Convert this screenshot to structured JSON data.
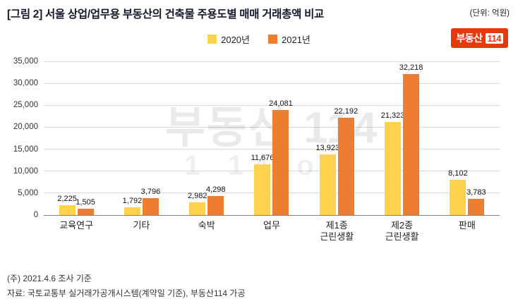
{
  "header": {
    "title": "[그림 2] 서울 상업/업무용 부동산의 건축물 주용도별 매매 거래총액 비교",
    "unit": "(단위: 억원)"
  },
  "legend": [
    {
      "label": "2020년",
      "color": "#ffd24d"
    },
    {
      "label": "2021년",
      "color": "#ed7d31"
    }
  ],
  "logo": {
    "ko": "부동산",
    "num": "114"
  },
  "watermark": {
    "line1": "부동산 114",
    "line2": "1 14 oll"
  },
  "chart_data": {
    "type": "bar",
    "categories": [
      "교육연구",
      "기타",
      "숙박",
      "업무",
      "제1종\n근린생활",
      "제2종\n근린생활",
      "판매"
    ],
    "series": [
      {
        "name": "2020년",
        "color": "#ffd24d",
        "values": [
          2225,
          1792,
          2982,
          11676,
          13923,
          21323,
          8102
        ]
      },
      {
        "name": "2021년",
        "color": "#ed7d31",
        "values": [
          1505,
          3796,
          4298,
          24081,
          22192,
          32218,
          3783
        ]
      }
    ],
    "title": "서울 상업/업무용 부동산의 건축물 주용도별 매매 거래총액 비교",
    "xlabel": "",
    "ylabel": "억원",
    "ylim": [
      0,
      35000
    ],
    "ytick_step": 5000,
    "grid": true,
    "legend_position": "top"
  },
  "footer": {
    "line1": "(주) 2021.4.6 조사 기준",
    "line2": "자료: 국토교통부 실거래가공개시스템(계약일 기준), 부동산114 가공"
  }
}
